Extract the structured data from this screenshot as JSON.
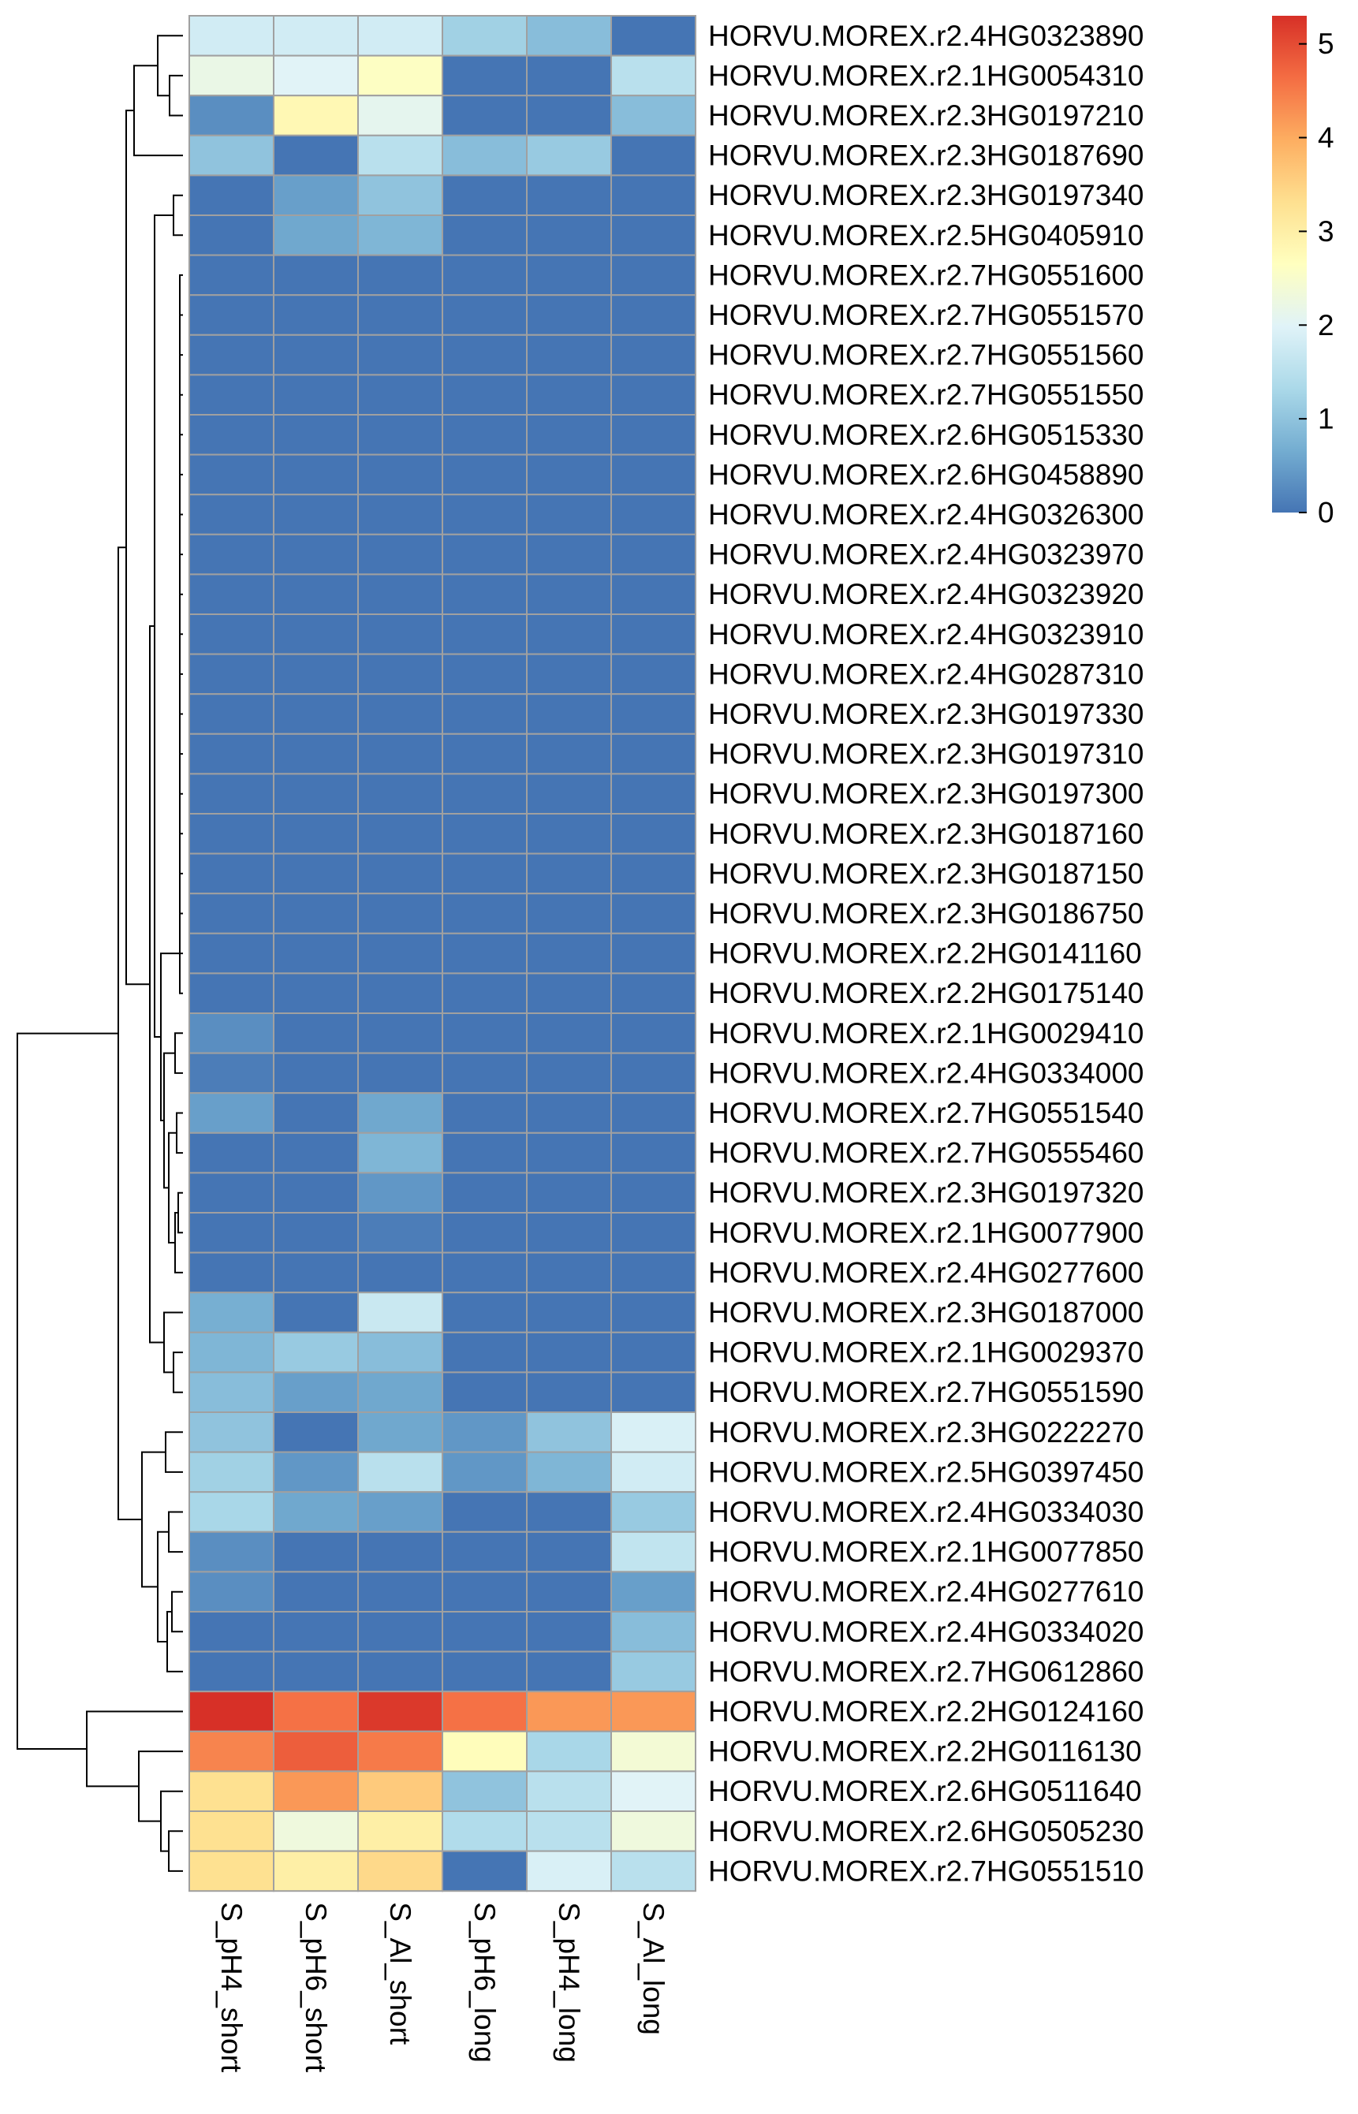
{
  "chart_data": {
    "type": "heatmap",
    "title": "",
    "columns": [
      "S_pH4_short",
      "S_pH6_short",
      "S_Al_short",
      "S_pH6_long",
      "S_pH4_long",
      "S_Al_long"
    ],
    "rows": [
      "HORVU.MOREX.r2.4HG0323890",
      "HORVU.MOREX.r2.1HG0054310",
      "HORVU.MOREX.r2.3HG0197210",
      "HORVU.MOREX.r2.3HG0187690",
      "HORVU.MOREX.r2.3HG0197340",
      "HORVU.MOREX.r2.5HG0405910",
      "HORVU.MOREX.r2.7HG0551600",
      "HORVU.MOREX.r2.7HG0551570",
      "HORVU.MOREX.r2.7HG0551560",
      "HORVU.MOREX.r2.7HG0551550",
      "HORVU.MOREX.r2.6HG0515330",
      "HORVU.MOREX.r2.6HG0458890",
      "HORVU.MOREX.r2.4HG0326300",
      "HORVU.MOREX.r2.4HG0323970",
      "HORVU.MOREX.r2.4HG0323920",
      "HORVU.MOREX.r2.4HG0323910",
      "HORVU.MOREX.r2.4HG0287310",
      "HORVU.MOREX.r2.3HG0197330",
      "HORVU.MOREX.r2.3HG0197310",
      "HORVU.MOREX.r2.3HG0197300",
      "HORVU.MOREX.r2.3HG0187160",
      "HORVU.MOREX.r2.3HG0187150",
      "HORVU.MOREX.r2.3HG0186750",
      "HORVU.MOREX.r2.2HG0141160",
      "HORVU.MOREX.r2.2HG0175140",
      "HORVU.MOREX.r2.1HG0029410",
      "HORVU.MOREX.r2.4HG0334000",
      "HORVU.MOREX.r2.7HG0551540",
      "HORVU.MOREX.r2.7HG0555460",
      "HORVU.MOREX.r2.3HG0197320",
      "HORVU.MOREX.r2.1HG0077900",
      "HORVU.MOREX.r2.4HG0277600",
      "HORVU.MOREX.r2.3HG0187000",
      "HORVU.MOREX.r2.1HG0029370",
      "HORVU.MOREX.r2.7HG0551590",
      "HORVU.MOREX.r2.3HG0222270",
      "HORVU.MOREX.r2.5HG0397450",
      "HORVU.MOREX.r2.4HG0334030",
      "HORVU.MOREX.r2.1HG0077850",
      "HORVU.MOREX.r2.4HG0277610",
      "HORVU.MOREX.r2.4HG0334020",
      "HORVU.MOREX.r2.7HG0612860",
      "HORVU.MOREX.r2.2HG0124160",
      "HORVU.MOREX.r2.2HG0116130",
      "HORVU.MOREX.r2.6HG0511640",
      "HORVU.MOREX.r2.6HG0505230",
      "HORVU.MOREX.r2.7HG0551510"
    ],
    "values": [
      [
        1.8,
        1.8,
        1.8,
        1.2,
        0.9,
        0.0
      ],
      [
        2.2,
        2.0,
        2.6,
        0.0,
        0.0,
        1.5
      ],
      [
        0.3,
        2.8,
        2.1,
        0.0,
        0.0,
        0.9
      ],
      [
        1.0,
        0.0,
        1.5,
        0.9,
        1.1,
        0.0
      ],
      [
        0.0,
        0.5,
        1.0,
        0.0,
        0.0,
        0.0
      ],
      [
        0.0,
        0.6,
        0.8,
        0.0,
        0.0,
        0.0
      ],
      [
        0.0,
        0.0,
        0.0,
        0.0,
        0.0,
        0.0
      ],
      [
        0.0,
        0.0,
        0.0,
        0.0,
        0.0,
        0.0
      ],
      [
        0.0,
        0.0,
        0.0,
        0.0,
        0.0,
        0.0
      ],
      [
        0.0,
        0.0,
        0.0,
        0.0,
        0.0,
        0.0
      ],
      [
        0.0,
        0.0,
        0.0,
        0.0,
        0.0,
        0.0
      ],
      [
        0.0,
        0.0,
        0.0,
        0.0,
        0.0,
        0.0
      ],
      [
        0.0,
        0.0,
        0.0,
        0.0,
        0.0,
        0.0
      ],
      [
        0.0,
        0.0,
        0.0,
        0.0,
        0.0,
        0.0
      ],
      [
        0.0,
        0.0,
        0.0,
        0.0,
        0.0,
        0.0
      ],
      [
        0.0,
        0.0,
        0.0,
        0.0,
        0.0,
        0.0
      ],
      [
        0.0,
        0.0,
        0.0,
        0.0,
        0.0,
        0.0
      ],
      [
        0.0,
        0.0,
        0.0,
        0.0,
        0.0,
        0.0
      ],
      [
        0.0,
        0.0,
        0.0,
        0.0,
        0.0,
        0.0
      ],
      [
        0.0,
        0.0,
        0.0,
        0.0,
        0.0,
        0.0
      ],
      [
        0.0,
        0.0,
        0.0,
        0.0,
        0.0,
        0.0
      ],
      [
        0.0,
        0.0,
        0.0,
        0.0,
        0.0,
        0.0
      ],
      [
        0.0,
        0.0,
        0.0,
        0.0,
        0.0,
        0.0
      ],
      [
        0.0,
        0.0,
        0.0,
        0.0,
        0.0,
        0.0
      ],
      [
        0.0,
        0.0,
        0.0,
        0.0,
        0.0,
        0.0
      ],
      [
        0.3,
        0.0,
        0.0,
        0.0,
        0.0,
        0.0
      ],
      [
        0.1,
        0.0,
        0.0,
        0.0,
        0.0,
        0.0
      ],
      [
        0.5,
        0.0,
        0.6,
        0.0,
        0.0,
        0.0
      ],
      [
        0.0,
        0.0,
        0.8,
        0.0,
        0.0,
        0.0
      ],
      [
        0.0,
        0.0,
        0.4,
        0.0,
        0.0,
        0.0
      ],
      [
        0.0,
        0.0,
        0.1,
        0.0,
        0.0,
        0.0
      ],
      [
        0.0,
        0.0,
        0.0,
        0.0,
        0.0,
        0.0
      ],
      [
        0.7,
        0.0,
        1.7,
        0.0,
        0.0,
        0.0
      ],
      [
        0.8,
        1.1,
        0.9,
        0.0,
        0.0,
        0.0
      ],
      [
        0.9,
        0.5,
        0.6,
        0.0,
        0.0,
        0.0
      ],
      [
        1.0,
        0.0,
        0.6,
        0.4,
        1.0,
        1.9
      ],
      [
        1.2,
        0.4,
        1.5,
        0.4,
        0.8,
        1.8
      ],
      [
        1.3,
        0.6,
        0.5,
        0.0,
        0.0,
        1.1
      ],
      [
        0.3,
        0.0,
        0.0,
        0.0,
        0.0,
        1.6
      ],
      [
        0.3,
        0.0,
        0.0,
        0.0,
        0.0,
        0.5
      ],
      [
        0.0,
        0.0,
        0.0,
        0.0,
        0.0,
        0.9
      ],
      [
        0.0,
        0.0,
        0.0,
        0.0,
        0.0,
        1.1
      ],
      [
        5.3,
        4.6,
        5.2,
        4.6,
        4.2,
        4.2
      ],
      [
        4.4,
        4.8,
        4.5,
        2.7,
        1.3,
        2.4
      ],
      [
        3.3,
        4.2,
        3.6,
        1.0,
        1.5,
        2.0
      ],
      [
        3.3,
        2.3,
        3.0,
        1.4,
        1.5,
        2.3
      ],
      [
        3.3,
        3.0,
        3.4,
        0.0,
        1.9,
        1.5
      ]
    ],
    "legend": {
      "ticks": [
        0,
        1,
        2,
        3,
        4,
        5
      ],
      "tick_labels": [
        "0",
        "1",
        "2",
        "3",
        "4",
        "5"
      ],
      "range": [
        0,
        5.3
      ],
      "colors": [
        "#4575b4",
        "#74add1",
        "#abd9e9",
        "#e0f3f8",
        "#ffffbf",
        "#fee090",
        "#fdae61",
        "#f46d43",
        "#d73027"
      ]
    },
    "cell_border_color": "#a0a0a0",
    "row_dendrogram": true,
    "column_dendrogram": false
  }
}
